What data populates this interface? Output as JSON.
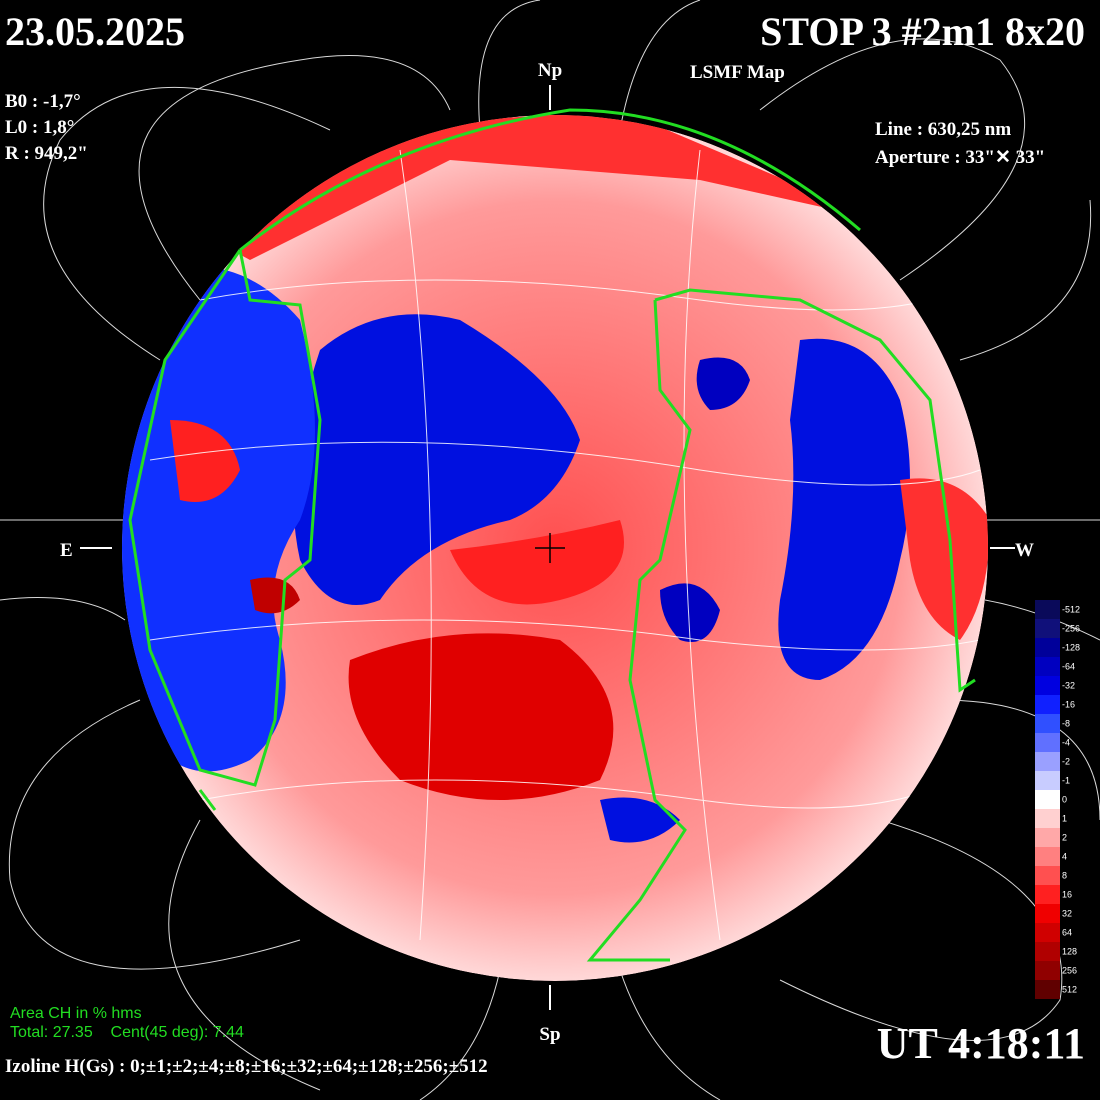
{
  "header": {
    "date": "23.05.2025",
    "station": "STOP 3 #2m1 8x20",
    "map_type": "LSMF  Map"
  },
  "ephemeris": {
    "b0": "B0 : -1,7°",
    "l0": "L0 : 1,8°",
    "r": "R  : 949,2\""
  },
  "instrument": {
    "line": "Line : 630,25 nm",
    "aperture": "Aperture : 33\"✕ 33\""
  },
  "directions": {
    "north": "Np",
    "south": "Sp",
    "east": "E",
    "west": "W"
  },
  "coronal_holes": {
    "title": "Area CH in % hms",
    "values": "Total: 27.35    Cent(45 deg): 7.44"
  },
  "time": "UT 4:18:11",
  "isolines": "Izoline H(Gs) : 0;±1;±2;±4;±8;±16;±32;±64;±128;±256;±512",
  "colorbar": {
    "labels": [
      -512,
      -256,
      -128,
      -64,
      -32,
      -16,
      -8,
      -4,
      -2,
      -1,
      0,
      1,
      2,
      4,
      8,
      16,
      32,
      64,
      128,
      256,
      512
    ],
    "colors": [
      "#0a0a5a",
      "#10107a",
      "#00009a",
      "#0000c0",
      "#0000e0",
      "#1020ff",
      "#3050ff",
      "#6070ff",
      "#9aa0ff",
      "#c8ccff",
      "#ffffff",
      "#ffd0d0",
      "#ffa8a8",
      "#ff8080",
      "#ff5050",
      "#ff2020",
      "#f00000",
      "#d00000",
      "#b00000",
      "#900000",
      "#600000"
    ]
  }
}
